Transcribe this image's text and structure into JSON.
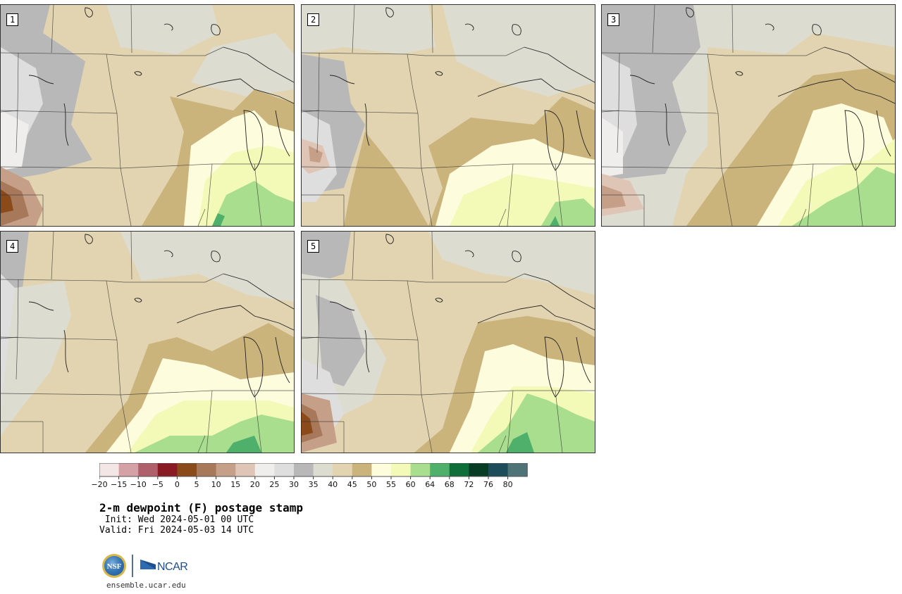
{
  "panels": [
    {
      "label": "1"
    },
    {
      "label": "2"
    },
    {
      "label": "3"
    },
    {
      "label": "4"
    },
    {
      "label": "5"
    }
  ],
  "colorbar": {
    "colors": [
      "#f2e6e6",
      "#d4a2a6",
      "#b0606a",
      "#8a1b24",
      "#8b4a1a",
      "#a8785a",
      "#c69f88",
      "#dfc5b6",
      "#efeeed",
      "#dedede",
      "#b8b8b8",
      "#dcdcd0",
      "#e2d4b0",
      "#cbb47c",
      "#fdfcdd",
      "#f3f9b6",
      "#a9de8e",
      "#4fb06b",
      "#0e6f3a",
      "#083c24",
      "#1e4c5a",
      "#4e7478"
    ],
    "tick_labels": [
      "−20",
      "−15",
      "−10",
      "−5",
      "0",
      "5",
      "10",
      "15",
      "20",
      "25",
      "30",
      "35",
      "40",
      "45",
      "50",
      "55",
      "60",
      "64",
      "68",
      "72",
      "76",
      "80"
    ]
  },
  "title": "2-m dewpoint (F) postage stamp",
  "init": " Init: Wed 2024-05-01 00 UTC",
  "valid": "Valid: Fri 2024-05-03 14 UTC",
  "logos": {
    "left": "NSF",
    "right": "NCAR"
  },
  "url": "ensemble.ucar.edu"
}
